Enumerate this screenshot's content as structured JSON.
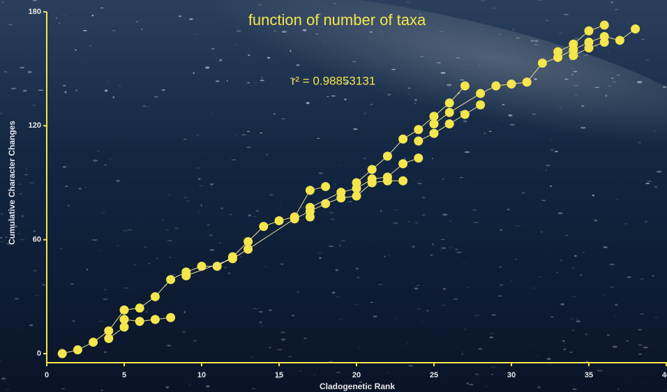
{
  "chart_data": {
    "type": "scatter-line",
    "title": "function of number of taxa",
    "annotation": "r² = 0.98853131",
    "x_label": "Cladogenetic Rank",
    "y_label": "Cumulative Character Changes",
    "xlim": [
      0,
      40
    ],
    "ylim": [
      0,
      180
    ],
    "xticks": [
      0,
      5,
      10,
      15,
      20,
      25,
      30,
      35,
      40
    ],
    "yticks": [
      0,
      60,
      120,
      180
    ],
    "color": "#f4e64c",
    "series": [
      {
        "x": [
          1,
          2,
          3,
          4,
          5,
          6,
          7,
          8,
          9,
          10,
          11,
          12,
          13,
          14,
          15,
          16,
          17,
          18
        ],
        "values": [
          0,
          2,
          6,
          12,
          23,
          24,
          30,
          39,
          43,
          46,
          46,
          51,
          59,
          67,
          70,
          72,
          86,
          88
        ]
      },
      {
        "x": [
          4,
          5,
          5,
          6,
          7,
          8
        ],
        "values": [
          8,
          14,
          18,
          17,
          18,
          19
        ]
      },
      {
        "x": [
          9,
          12,
          13,
          16,
          17,
          18,
          19,
          20,
          21,
          22,
          23
        ],
        "values": [
          41,
          50,
          55,
          71,
          75,
          79,
          82,
          83,
          90,
          91,
          91
        ]
      },
      {
        "x": [
          17,
          17,
          19,
          20,
          21,
          22,
          23,
          24
        ],
        "values": [
          72,
          77,
          85,
          87,
          92,
          93,
          100,
          103
        ]
      },
      {
        "x": [
          20,
          21,
          22,
          23,
          24,
          25,
          26,
          27
        ],
        "values": [
          90,
          97,
          104,
          113,
          118,
          125,
          132,
          141
        ]
      },
      {
        "x": [
          24,
          25,
          26,
          27,
          28
        ],
        "values": [
          112,
          116,
          121,
          126,
          131
        ]
      },
      {
        "x": [
          25,
          26,
          28,
          29,
          30,
          31,
          32,
          33,
          34,
          35,
          36,
          37,
          38
        ],
        "values": [
          121,
          127,
          137,
          141,
          142,
          143,
          153,
          156,
          160,
          164,
          167,
          165,
          171
        ]
      },
      {
        "x": [
          33,
          34,
          35,
          36
        ],
        "values": [
          159,
          163,
          170,
          173
        ]
      },
      {
        "x": [
          34,
          35,
          36
        ],
        "values": [
          157,
          161,
          164
        ]
      }
    ]
  }
}
